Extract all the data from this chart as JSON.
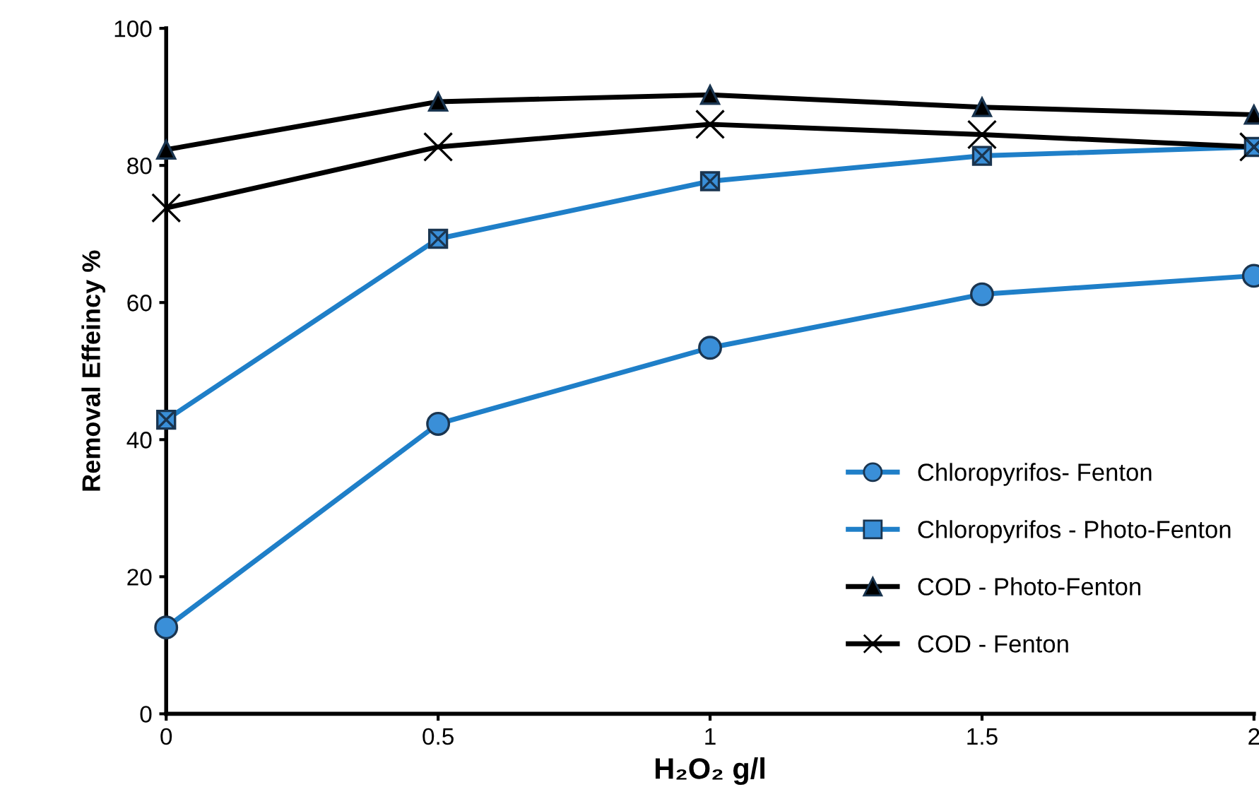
{
  "chart_data": {
    "type": "line",
    "xlabel": "H₂O₂ g/l",
    "ylabel": "Removal Effeincy %",
    "x": [
      0,
      0.5,
      1,
      1.5,
      2
    ],
    "xlim": [
      0,
      2
    ],
    "ylim": [
      0,
      100
    ],
    "xticks": [
      0,
      0.5,
      1,
      1.5,
      2
    ],
    "yticks": [
      0,
      20,
      40,
      60,
      80,
      100
    ],
    "grid": false,
    "legend": "bottom right",
    "series": [
      {
        "name": "Chloropyrifos- Fenton",
        "color": "#1f7fc8",
        "marker": "circle",
        "values": [
          12.6,
          42.3,
          53.4,
          61.2,
          63.9
        ]
      },
      {
        "name": "Chloropyrifos - Photo-Fenton",
        "color": "#1f7fc8",
        "marker": "square",
        "values": [
          42.9,
          69.3,
          77.7,
          81.4,
          82.7
        ]
      },
      {
        "name": "COD - Photo-Fenton",
        "color": "#000000",
        "marker": "triangle",
        "values": [
          82.3,
          89.3,
          90.3,
          88.5,
          87.4
        ]
      },
      {
        "name": "COD - Fenton",
        "color": "#000000",
        "marker": "cross",
        "values": [
          73.8,
          82.7,
          86.0,
          84.5,
          82.7
        ]
      }
    ]
  }
}
